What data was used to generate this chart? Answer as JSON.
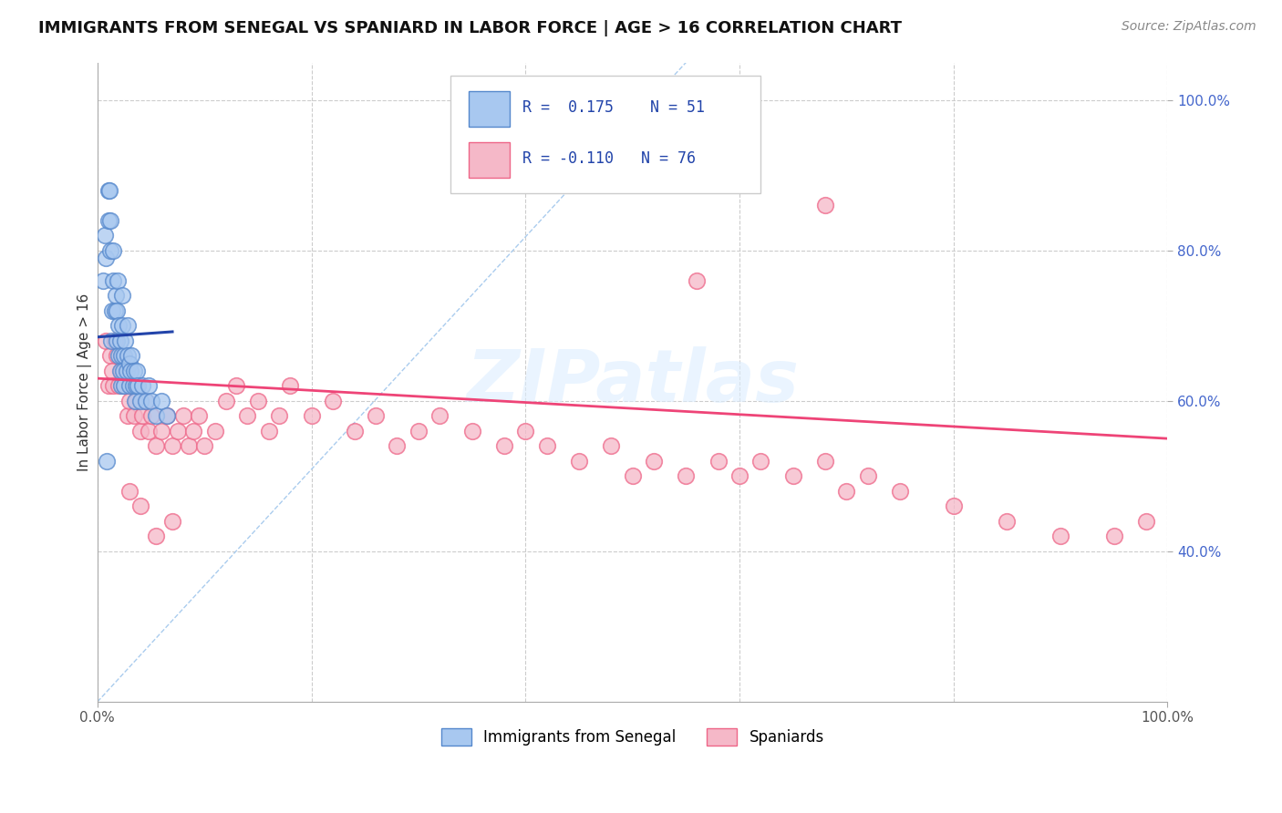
{
  "title": "IMMIGRANTS FROM SENEGAL VS SPANIARD IN LABOR FORCE | AGE > 16 CORRELATION CHART",
  "source_text": "Source: ZipAtlas.com",
  "ylabel": "In Labor Force | Age > 16",
  "xlim": [
    0.0,
    1.0
  ],
  "ylim": [
    0.2,
    1.05
  ],
  "xticks": [
    0.0,
    0.2,
    0.4,
    0.6,
    0.8,
    1.0
  ],
  "xticklabels": [
    "0.0%",
    "",
    "",
    "",
    "",
    "100.0%"
  ],
  "yticks": [
    0.4,
    0.6,
    0.8,
    1.0
  ],
  "yticklabels": [
    "40.0%",
    "60.0%",
    "80.0%",
    "100.0%"
  ],
  "grid_color": "#cccccc",
  "background_color": "#ffffff",
  "senegal_color": "#a8c8f0",
  "spaniard_color": "#f5b8c8",
  "senegal_edge_color": "#5588cc",
  "spaniard_edge_color": "#ee6688",
  "senegal_line_color": "#2244aa",
  "spaniard_line_color": "#ee4477",
  "ref_line_color": "#aaccee",
  "legend_R_senegal": "R =  0.175",
  "legend_N_senegal": "N = 51",
  "legend_R_spaniard": "R = -0.110",
  "legend_N_spaniard": "N = 76",
  "legend_label_senegal": "Immigrants from Senegal",
  "legend_label_spaniard": "Spaniards",
  "senegal_intercept": 0.685,
  "senegal_slope": 0.1,
  "spaniard_intercept": 0.63,
  "spaniard_slope": -0.08,
  "watermark_text": "ZIPatlas",
  "senegal_x": [
    0.005,
    0.007,
    0.008,
    0.01,
    0.01,
    0.012,
    0.012,
    0.013,
    0.014,
    0.015,
    0.015,
    0.016,
    0.017,
    0.018,
    0.018,
    0.019,
    0.02,
    0.02,
    0.021,
    0.021,
    0.022,
    0.022,
    0.023,
    0.023,
    0.024,
    0.025,
    0.025,
    0.026,
    0.027,
    0.028,
    0.028,
    0.03,
    0.03,
    0.031,
    0.032,
    0.033,
    0.034,
    0.035,
    0.036,
    0.037,
    0.038,
    0.04,
    0.042,
    0.045,
    0.048,
    0.05,
    0.055,
    0.06,
    0.065,
    0.009,
    0.011
  ],
  "senegal_y": [
    0.76,
    0.82,
    0.79,
    0.84,
    0.88,
    0.8,
    0.84,
    0.68,
    0.72,
    0.76,
    0.8,
    0.72,
    0.74,
    0.68,
    0.72,
    0.76,
    0.66,
    0.7,
    0.64,
    0.68,
    0.62,
    0.66,
    0.7,
    0.74,
    0.64,
    0.62,
    0.66,
    0.68,
    0.64,
    0.66,
    0.7,
    0.62,
    0.65,
    0.64,
    0.66,
    0.62,
    0.64,
    0.6,
    0.62,
    0.64,
    0.62,
    0.6,
    0.62,
    0.6,
    0.62,
    0.6,
    0.58,
    0.6,
    0.58,
    0.52,
    0.88
  ],
  "spaniard_x": [
    0.008,
    0.01,
    0.012,
    0.014,
    0.015,
    0.016,
    0.018,
    0.02,
    0.022,
    0.024,
    0.025,
    0.026,
    0.028,
    0.03,
    0.032,
    0.034,
    0.036,
    0.038,
    0.04,
    0.042,
    0.045,
    0.048,
    0.05,
    0.055,
    0.06,
    0.065,
    0.07,
    0.075,
    0.08,
    0.085,
    0.09,
    0.095,
    0.1,
    0.11,
    0.12,
    0.13,
    0.14,
    0.15,
    0.16,
    0.17,
    0.18,
    0.2,
    0.22,
    0.24,
    0.26,
    0.28,
    0.3,
    0.32,
    0.35,
    0.38,
    0.4,
    0.42,
    0.45,
    0.48,
    0.5,
    0.52,
    0.55,
    0.58,
    0.6,
    0.62,
    0.65,
    0.68,
    0.7,
    0.72,
    0.75,
    0.8,
    0.85,
    0.9,
    0.95,
    0.98,
    0.56,
    0.68,
    0.03,
    0.04,
    0.055,
    0.07
  ],
  "spaniard_y": [
    0.68,
    0.62,
    0.66,
    0.64,
    0.62,
    0.68,
    0.66,
    0.62,
    0.64,
    0.66,
    0.62,
    0.64,
    0.58,
    0.6,
    0.62,
    0.58,
    0.6,
    0.62,
    0.56,
    0.58,
    0.6,
    0.56,
    0.58,
    0.54,
    0.56,
    0.58,
    0.54,
    0.56,
    0.58,
    0.54,
    0.56,
    0.58,
    0.54,
    0.56,
    0.6,
    0.62,
    0.58,
    0.6,
    0.56,
    0.58,
    0.62,
    0.58,
    0.6,
    0.56,
    0.58,
    0.54,
    0.56,
    0.58,
    0.56,
    0.54,
    0.56,
    0.54,
    0.52,
    0.54,
    0.5,
    0.52,
    0.5,
    0.52,
    0.5,
    0.52,
    0.5,
    0.52,
    0.48,
    0.5,
    0.48,
    0.46,
    0.44,
    0.42,
    0.42,
    0.44,
    0.76,
    0.86,
    0.48,
    0.46,
    0.42,
    0.44
  ]
}
